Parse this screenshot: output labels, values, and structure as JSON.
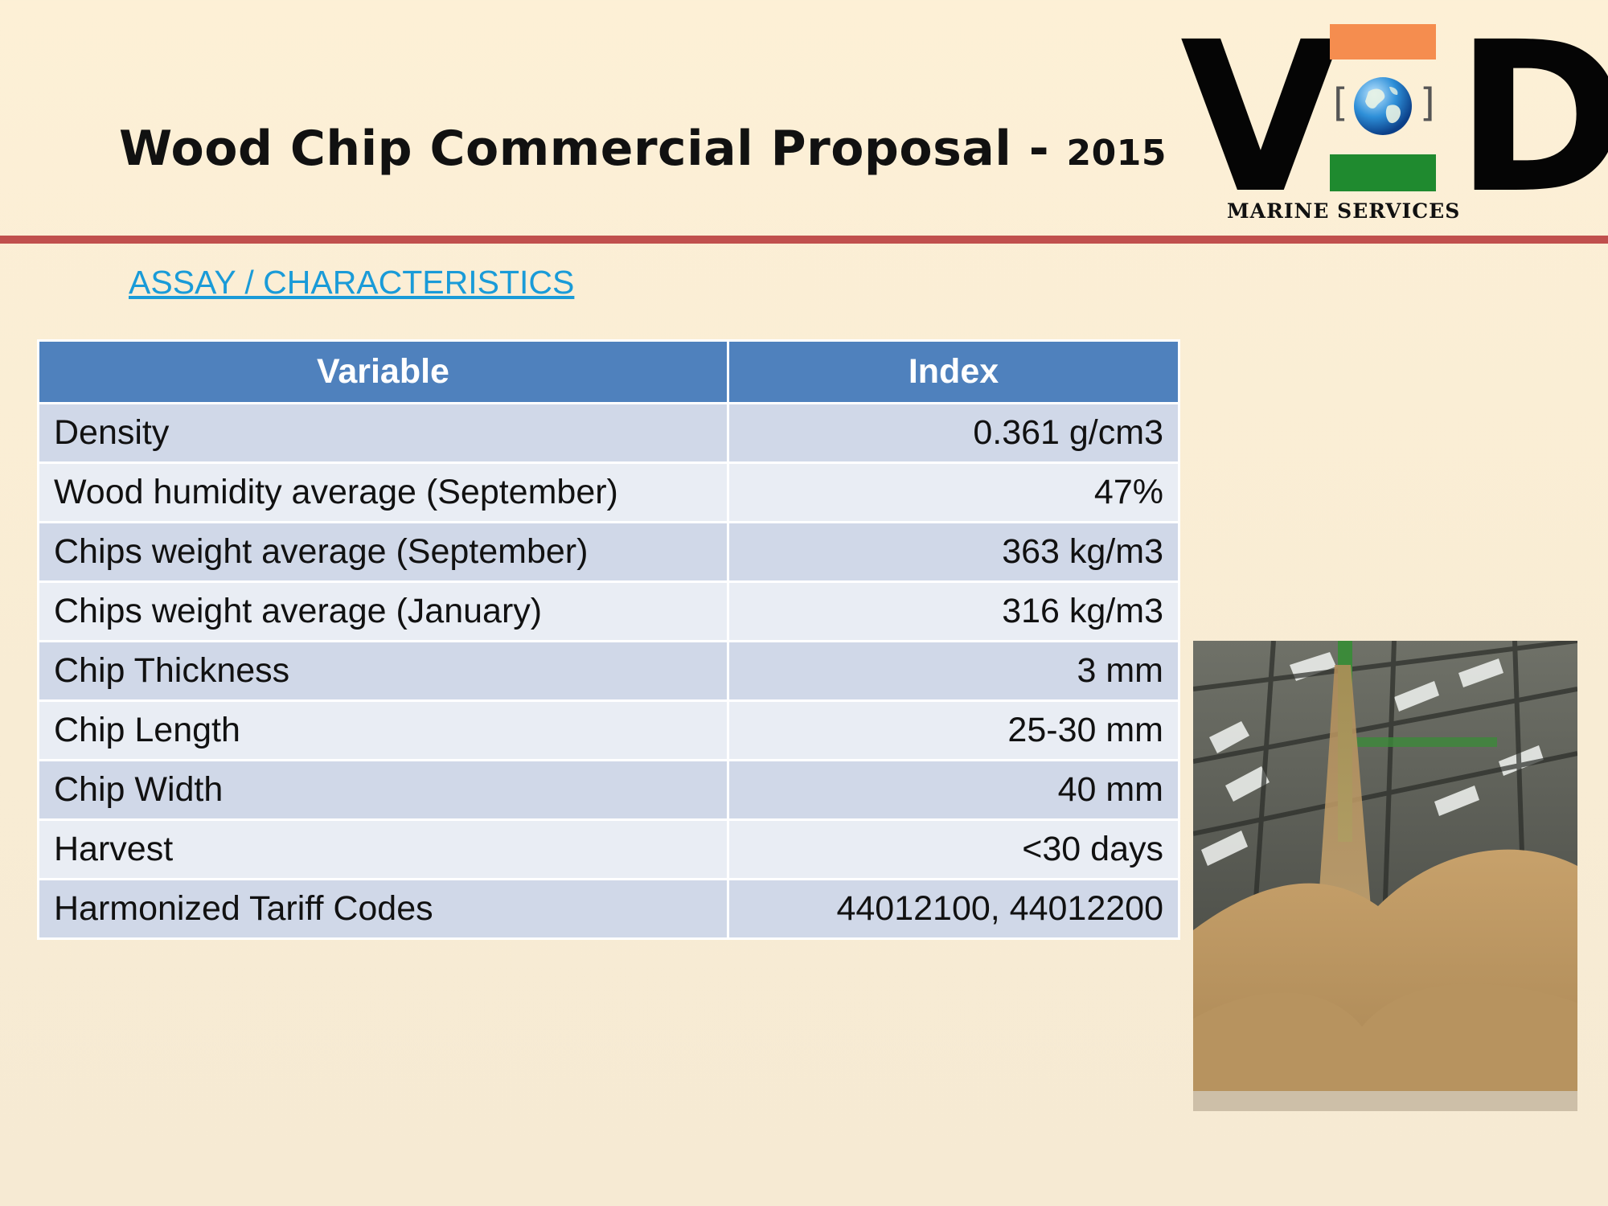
{
  "header": {
    "title": "Wood Chip Commercial Proposal -",
    "year": "2015"
  },
  "logo": {
    "letter_left": "V",
    "letter_right": "D",
    "bracket_left": "[",
    "bracket_right": "]",
    "tagline": "MARINE SERVICES",
    "colors": {
      "top_bar": "#f58d4f",
      "bottom_bar": "#1f8a2f",
      "letters": "#050505"
    },
    "icon": "globe-icon"
  },
  "section": {
    "heading": "ASSAY / CHARACTERISTICS"
  },
  "table": {
    "headers": [
      "Variable",
      "Index"
    ],
    "rows": [
      {
        "variable": "Density",
        "index": "0.361 g/cm3"
      },
      {
        "variable": "Wood humidity average (September)",
        "index": "47%"
      },
      {
        "variable": "Chips weight average (September)",
        "index": "363 kg/m3"
      },
      {
        "variable": "Chips weight average (January)",
        "index": "316 kg/m3"
      },
      {
        "variable": "Chip Thickness",
        "index": "3 mm"
      },
      {
        "variable": "Chip Length",
        "index": "25-30 mm"
      },
      {
        "variable": "Chip Width",
        "index": "40 mm"
      },
      {
        "variable": "Harvest",
        "index": "<30 days"
      },
      {
        "variable": "Harmonized Tariff Codes",
        "index": "44012100, 44012200"
      }
    ]
  },
  "colors": {
    "accent_rule": "#c0504d",
    "heading_link": "#1a9bd8",
    "table_header": "#4f81bd"
  },
  "photo": {
    "subject": "wood-chip-pile-image"
  }
}
